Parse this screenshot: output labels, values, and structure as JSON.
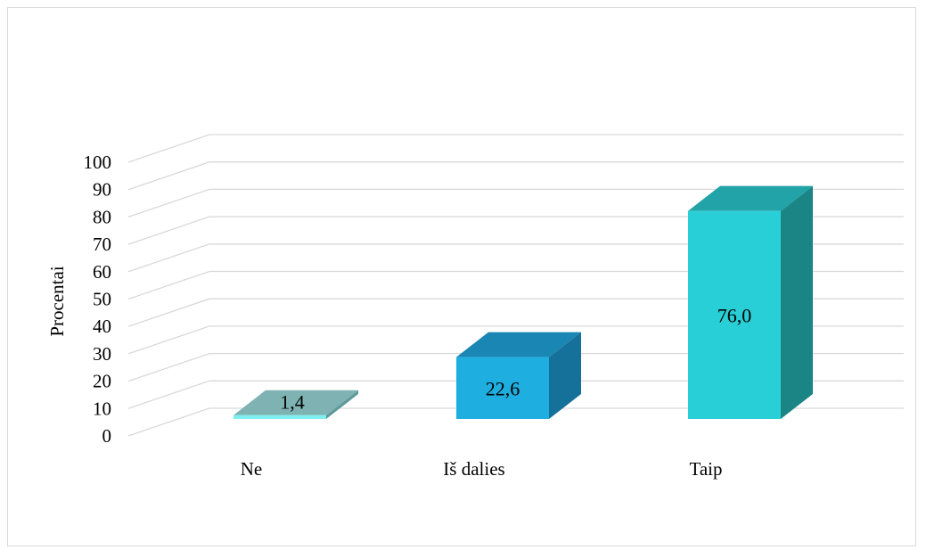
{
  "chart_data": {
    "type": "bar",
    "style": "3d-column",
    "categories": [
      "Ne",
      "Iš dalies",
      "Taip"
    ],
    "values": [
      1.4,
      22.6,
      76.0
    ],
    "data_labels": [
      "1,4",
      "22,6",
      "76,0"
    ],
    "title": "",
    "xlabel": "",
    "ylabel": "Procentai",
    "ylim": [
      0,
      100
    ],
    "ytick_step": 10,
    "y_ticks": [
      "0",
      "10",
      "20",
      "30",
      "40",
      "50",
      "60",
      "70",
      "80",
      "90",
      "100"
    ],
    "grid": true,
    "legend": "none",
    "colors": {
      "bars": [
        {
          "front": "#7FEFEF",
          "top": "#7FB3B3",
          "side": "#5F9999"
        },
        {
          "front": "#1FAEE0",
          "top": "#1A86B3",
          "side": "#15709A"
        },
        {
          "front": "#29CFD6",
          "top": "#21A3A8",
          "side": "#1B8586"
        }
      ],
      "grid": "#d9d9d9"
    }
  }
}
